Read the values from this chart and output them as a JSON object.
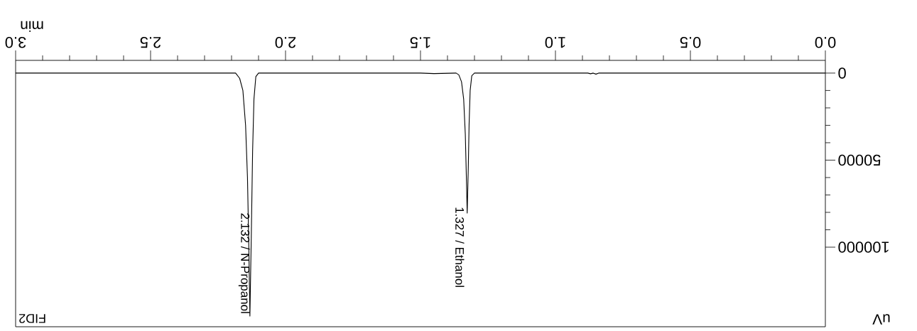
{
  "chart_data": {
    "type": "line",
    "xlabel": "min",
    "ylabel": "uV",
    "x": [
      0.0,
      0.5,
      0.84,
      0.85,
      0.86,
      0.87,
      0.88,
      1.2,
      1.3,
      1.31,
      1.316,
      1.32,
      1.323,
      1.327,
      1.33,
      1.334,
      1.34,
      1.348,
      1.358,
      1.368,
      1.45,
      1.5,
      2.1,
      2.11,
      2.117,
      2.122,
      2.127,
      2.132,
      2.136,
      2.141,
      2.148,
      2.158,
      2.17,
      2.185,
      2.5,
      3.0
    ],
    "series": [
      {
        "color": "#000000",
        "values": [
          0,
          0,
          0,
          600,
          0,
          400,
          0,
          0,
          0,
          1500,
          10000,
          30000,
          55000,
          80400,
          60000,
          35000,
          15000,
          5000,
          1000,
          0,
          300,
          0,
          0,
          2000,
          15000,
          45000,
          95000,
          139600,
          100000,
          60000,
          30000,
          10000,
          3000,
          0,
          0,
          0
        ]
      }
    ],
    "xlim": [
      3.0,
      0.0
    ],
    "ylim": [
      145700,
      -7300
    ],
    "xticks": [
      {
        "value": 0,
        "label": "0.0"
      },
      {
        "value": 0.5,
        "label": "0.5"
      },
      {
        "value": 1,
        "label": "1.0"
      },
      {
        "value": 1.5,
        "label": "1.5"
      },
      {
        "value": 2,
        "label": "2.0"
      },
      {
        "value": 2.5,
        "label": "2.5"
      },
      {
        "value": 3,
        "label": "3.0"
      }
    ],
    "yticks": [
      0,
      50000,
      100000
    ],
    "annotations": [
      {
        "text": "1.327 / Ethanol",
        "x": 1.327,
        "y": 80400
      },
      {
        "text": "2.132 / N-Propanol",
        "x": 2.132,
        "y": 139600
      },
      "FID2"
    ],
    "grid": false,
    "marker": "none",
    "line_style": "solid"
  }
}
